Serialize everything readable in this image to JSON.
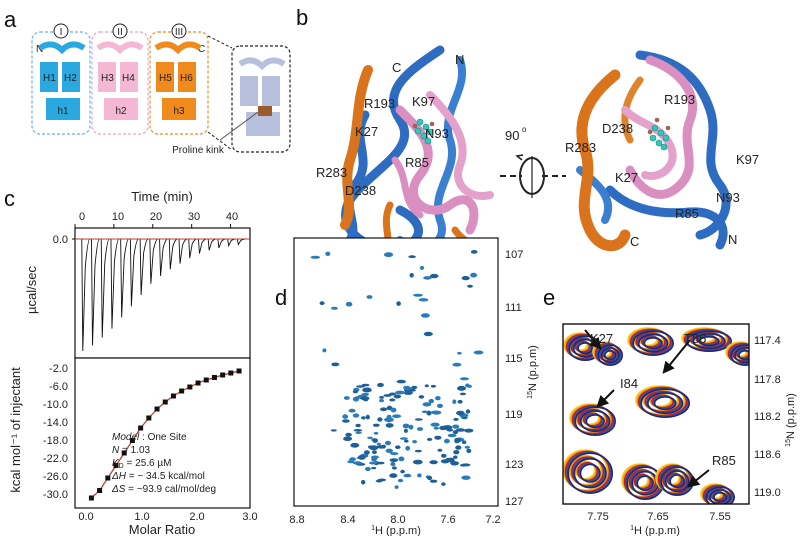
{
  "panel_labels": {
    "a": "a",
    "b": "b",
    "c": "c",
    "d": "d",
    "e": "e"
  },
  "panel_a": {
    "domains": [
      {
        "roman": "I",
        "helix1": "H1",
        "helix2": "H2",
        "loop": "h1",
        "color": "#29a9e0",
        "border": "#5fb3e6"
      },
      {
        "roman": "II",
        "helix1": "H3",
        "helix2": "H4",
        "loop": "h2",
        "color": "#f4b8d4",
        "border": "#e9a3c2"
      },
      {
        "roman": "III",
        "helix1": "H5",
        "helix2": "H6",
        "loop": "h3",
        "color": "#f08a1c",
        "border": "#f08a1c"
      }
    ],
    "n_term": "N",
    "c_term": "C",
    "kink_label": "Proline kink",
    "zoom_color": "#b6c0dc",
    "kink_color": "#9a5c2e"
  },
  "panel_b": {
    "left_view": {
      "labels": [
        "C",
        "N",
        "R193",
        "K97",
        "K27",
        "N93",
        "R85",
        "R283",
        "D238"
      ]
    },
    "right_view": {
      "labels": [
        "R193",
        "D238",
        "R283",
        "K97",
        "K27",
        "N93",
        "R85",
        "C",
        "N"
      ]
    },
    "rotation": "90",
    "rotation_unit": "o",
    "colors": {
      "blue": "#2d6cc0",
      "pink": "#d98fc0",
      "orange": "#d9741c",
      "ligand": "#33c7b7"
    }
  },
  "panel_c": {
    "top_xlabel": "Time (min)",
    "top_ylabel": "µcal/sec",
    "top_xticks": [
      "0",
      "10",
      "20",
      "30",
      "40"
    ],
    "top_yticks": [
      "0.0"
    ],
    "bottom_ylabel": "kcal mol⁻¹ of injectant",
    "bottom_xlabel": "Molar Ratio",
    "bottom_xticks": [
      "0.0",
      "1.0",
      "2.0",
      "3.0"
    ],
    "bottom_yticks": [
      "-2.0",
      "-6.0",
      "-10.0",
      "-14.0",
      "-18.0",
      "-22.0",
      "-26.0",
      "-30.0"
    ],
    "fit_info": {
      "model_label": "Model",
      "model_value": ": One Site",
      "n_label": "N",
      "n_value": "= 1.03",
      "kd_label": "K",
      "kd_sub": "D",
      "kd_value": "= 25.6 µM",
      "dh_label": "ΔH",
      "dh_value": "= − 34.5 kcal/mol",
      "ds_label": "ΔS",
      "ds_value": "= −93.9 cal/mol/deg"
    }
  },
  "panel_d": {
    "xlabel_sup": "1",
    "xlabel": "H (p.p.m)",
    "ylabel_sup": "15",
    "ylabel": "N (p.p.m)",
    "xticks": [
      "8.8",
      "8.4",
      "8.0",
      "7.6",
      "7.2"
    ],
    "yticks": [
      "107",
      "111",
      "115",
      "119",
      "123",
      "127"
    ]
  },
  "panel_e": {
    "xlabel_sup": "1",
    "xlabel": "H (p.p.m)",
    "ylabel_sup": "15",
    "ylabel": "N (p.p.m)",
    "xticks": [
      "7.75",
      "7.65",
      "7.55"
    ],
    "yticks": [
      "117.4",
      "117.8",
      "118.2",
      "118.6",
      "119.0"
    ],
    "peak_labels": [
      "K27",
      "T86",
      "I84",
      "R85"
    ],
    "contour_colors": [
      "#f2d21c",
      "#f29a1c",
      "#c41c1c",
      "#3a4fa0",
      "#1e2a70"
    ]
  },
  "chart_data": [
    {
      "type": "line",
      "title": "",
      "xlabel": "Time (min)",
      "ylabel": "µcal/sec",
      "xlim": [
        0,
        45
      ],
      "series": [
        {
          "values": []
        }
      ],
      "injection_times_min": [
        2,
        4.5,
        7,
        9.5,
        12,
        14.5,
        17,
        19.5,
        22,
        24.5,
        27,
        29.5,
        32,
        34.5,
        37,
        39.5,
        42
      ],
      "peak_depth_relative": [
        1.0,
        0.95,
        0.88,
        0.8,
        0.7,
        0.6,
        0.5,
        0.4,
        0.33,
        0.27,
        0.22,
        0.17,
        0.13,
        0.1,
        0.08,
        0.06,
        0.05
      ]
    },
    {
      "type": "scatter",
      "title": "",
      "xlabel": "Molar Ratio",
      "ylabel": "kcal mol⁻¹ of injectant",
      "xlim": [
        -0.2,
        3.0
      ],
      "ylim": [
        -32,
        -2
      ],
      "x": [
        0.1,
        0.25,
        0.4,
        0.55,
        0.7,
        0.85,
        1.0,
        1.15,
        1.3,
        1.45,
        1.6,
        1.75,
        1.9,
        2.05,
        2.2,
        2.35,
        2.5,
        2.65,
        2.8
      ],
      "y": [
        -30,
        -28.5,
        -26,
        -23.5,
        -21,
        -18.5,
        -16,
        -14,
        -12.2,
        -10.8,
        -9.6,
        -8.6,
        -7.8,
        -7.0,
        -6.4,
        -5.9,
        -5.4,
        -5.0,
        -4.6
      ],
      "fit": "one-site"
    }
  ]
}
